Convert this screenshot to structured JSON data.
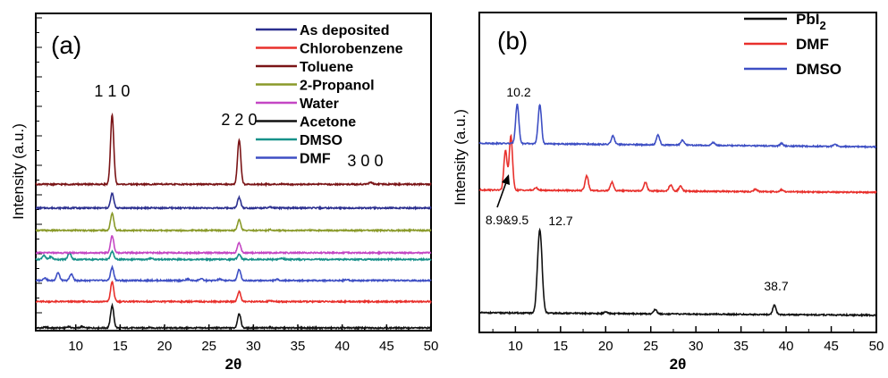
{
  "chart_data": [
    {
      "type": "line",
      "panel_label": "(a)",
      "xlabel": "2θ",
      "ylabel": "Intensity (a.u.)",
      "xlim": [
        5.5,
        50
      ],
      "x_ticks": [
        "10",
        "15",
        "20",
        "25",
        "30",
        "35",
        "40",
        "45",
        "50"
      ],
      "grid": false,
      "legend_position": "top-right",
      "legend": [
        {
          "name": "As deposited",
          "color": "#2b2f8f"
        },
        {
          "name": "Chlorobenzene",
          "color": "#e8302c"
        },
        {
          "name": "Toluene",
          "color": "#7a1416"
        },
        {
          "name": "2-Propanol",
          "color": "#8a9a2a"
        },
        {
          "name": "Water",
          "color": "#c447c4"
        },
        {
          "name": "Acetone",
          "color": "#111111"
        },
        {
          "name": "DMSO",
          "color": "#17918a"
        },
        {
          "name": "DMF",
          "color": "#3e4fc4"
        }
      ],
      "peak_labels": [
        {
          "text": "1 1 0",
          "x": 14.1
        },
        {
          "text": "2 2 0",
          "x": 28.4
        },
        {
          "text": "3 0 0",
          "x": 43.2
        }
      ],
      "series": [
        {
          "name": "Acetone",
          "color": "#111111",
          "baseline": 0.0,
          "peaks": [
            {
              "x": 6.6,
              "h": 0.03
            },
            {
              "x": 9.2,
              "h": 0.05
            },
            {
              "x": 10.7,
              "h": 0.05
            },
            {
              "x": 14.1,
              "h": 0.85
            },
            {
              "x": 18.3,
              "h": 0.02
            },
            {
              "x": 28.4,
              "h": 0.55
            },
            {
              "x": 31.8,
              "h": 0.02
            }
          ]
        },
        {
          "name": "Chlorobenzene",
          "color": "#e8302c",
          "baseline": 1.0,
          "peaks": [
            {
              "x": 14.1,
              "h": 0.75
            },
            {
              "x": 28.4,
              "h": 0.38
            },
            {
              "x": 31.9,
              "h": 0.04
            }
          ]
        },
        {
          "name": "DMF",
          "color": "#3e4fc4",
          "baseline": 1.8,
          "peaks": [
            {
              "x": 6.5,
              "h": 0.1
            },
            {
              "x": 8.0,
              "h": 0.3
            },
            {
              "x": 9.5,
              "h": 0.25
            },
            {
              "x": 14.1,
              "h": 0.5
            },
            {
              "x": 22.6,
              "h": 0.05
            },
            {
              "x": 24.1,
              "h": 0.07
            },
            {
              "x": 26.2,
              "h": 0.05
            },
            {
              "x": 28.4,
              "h": 0.42
            },
            {
              "x": 32.7,
              "h": 0.04
            },
            {
              "x": 40.5,
              "h": 0.04
            }
          ]
        },
        {
          "name": "DMSO",
          "color": "#17918a",
          "baseline": 2.6,
          "peaks": [
            {
              "x": 6.4,
              "h": 0.15
            },
            {
              "x": 7.2,
              "h": 0.1
            },
            {
              "x": 9.3,
              "h": 0.25
            },
            {
              "x": 14.1,
              "h": 0.3
            },
            {
              "x": 18.5,
              "h": 0.05
            },
            {
              "x": 28.4,
              "h": 0.2
            },
            {
              "x": 33.2,
              "h": 0.04
            }
          ]
        },
        {
          "name": "Water",
          "color": "#c447c4",
          "baseline": 2.85,
          "peaks": [
            {
              "x": 14.1,
              "h": 0.65
            },
            {
              "x": 28.4,
              "h": 0.38
            }
          ]
        },
        {
          "name": "2-Propanol",
          "color": "#8a9a2a",
          "baseline": 3.7,
          "peaks": [
            {
              "x": 14.1,
              "h": 0.65
            },
            {
              "x": 28.4,
              "h": 0.4
            },
            {
              "x": 31.9,
              "h": 0.03
            }
          ]
        },
        {
          "name": "As deposited",
          "color": "#2b2f8f",
          "baseline": 4.55,
          "peaks": [
            {
              "x": 14.1,
              "h": 0.55
            },
            {
              "x": 28.4,
              "h": 0.4
            },
            {
              "x": 31.9,
              "h": 0.03
            }
          ]
        },
        {
          "name": "Toluene",
          "color": "#7a1416",
          "baseline": 5.45,
          "peaks": [
            {
              "x": 14.1,
              "h": 2.65
            },
            {
              "x": 28.4,
              "h": 1.7
            },
            {
              "x": 43.2,
              "h": 0.08
            }
          ]
        }
      ]
    },
    {
      "type": "line",
      "panel_label": "(b)",
      "xlabel": "2θ",
      "ylabel": "Intensity (a.u.)",
      "xlim": [
        6,
        50
      ],
      "x_ticks": [
        "10",
        "15",
        "20",
        "25",
        "30",
        "35",
        "40",
        "45",
        "50"
      ],
      "grid": false,
      "legend_position": "top-right",
      "legend": [
        {
          "name": "PbI",
          "sub": "2",
          "color": "#111111"
        },
        {
          "name": "DMF",
          "color": "#e8302c"
        },
        {
          "name": "DMSO",
          "color": "#3e4fc4"
        }
      ],
      "annotations": [
        {
          "text": "10.2",
          "x": 10.2
        },
        {
          "text": "8.9&9.5",
          "x": 9.2
        },
        {
          "text": "12.7",
          "x": 12.7
        },
        {
          "text": "38.7",
          "x": 38.7
        }
      ],
      "series": [
        {
          "name": "PbI2",
          "color": "#111111",
          "baseline": 0.0,
          "tilt": -0.1,
          "peaks": [
            {
              "x": 12.7,
              "h": 3.4,
              "w": 0.25
            },
            {
              "x": 25.5,
              "h": 0.18
            },
            {
              "x": 38.7,
              "h": 0.4
            },
            {
              "x": 20.0,
              "h": 0.06
            }
          ]
        },
        {
          "name": "DMF",
          "color": "#e8302c",
          "baseline": 5.0,
          "tilt": -0.1,
          "peaks": [
            {
              "x": 8.9,
              "h": 1.6
            },
            {
              "x": 9.5,
              "h": 2.2
            },
            {
              "x": 12.3,
              "h": 0.1
            },
            {
              "x": 17.9,
              "h": 0.6
            },
            {
              "x": 20.7,
              "h": 0.35
            },
            {
              "x": 24.4,
              "h": 0.35
            },
            {
              "x": 27.2,
              "h": 0.25
            },
            {
              "x": 28.3,
              "h": 0.2
            },
            {
              "x": 36.6,
              "h": 0.1
            },
            {
              "x": 39.5,
              "h": 0.08
            }
          ]
        },
        {
          "name": "DMSO",
          "color": "#3e4fc4",
          "baseline": 6.9,
          "tilt": -0.15,
          "peaks": [
            {
              "x": 10.2,
              "h": 1.6
            },
            {
              "x": 12.7,
              "h": 1.6
            },
            {
              "x": 20.8,
              "h": 0.35
            },
            {
              "x": 25.8,
              "h": 0.4
            },
            {
              "x": 28.5,
              "h": 0.2
            },
            {
              "x": 31.9,
              "h": 0.12
            },
            {
              "x": 39.5,
              "h": 0.1
            },
            {
              "x": 45.4,
              "h": 0.1
            }
          ]
        }
      ]
    }
  ]
}
